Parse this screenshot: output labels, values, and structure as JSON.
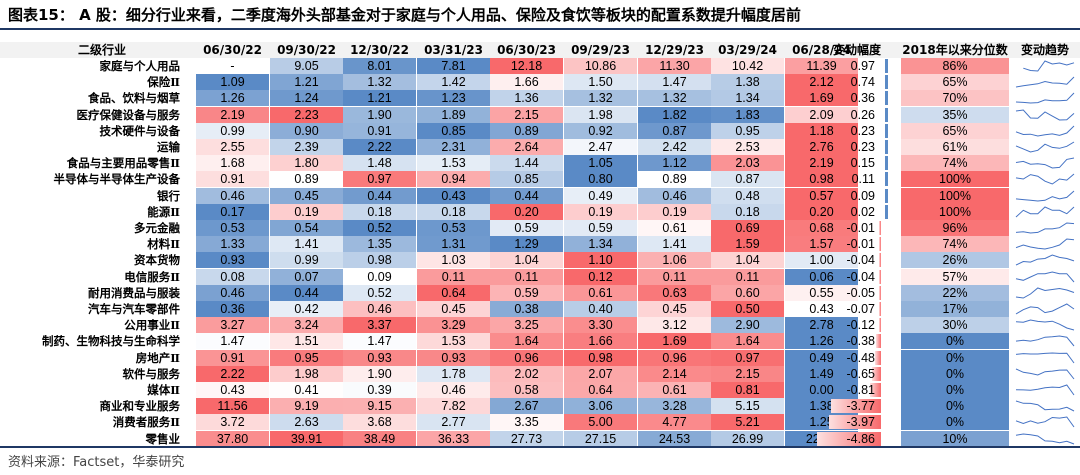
{
  "title": "图表15：  A 股：细分行业来看，二季度海外头部基金对于家庭与个人用品、保险及食饮等板块的配置系数提升幅度居前",
  "source": "资料来源：Factset，华泰研究",
  "colors": {
    "rule": "#1f3864",
    "high": "#f8696b",
    "mid": "#ffffff",
    "low": "#5a8ac6",
    "neg_bar": "#f8696b",
    "pos_bar": "#5a8ac6",
    "spark": "#4472c4"
  },
  "columns": {
    "industry": "二级行业",
    "dates": [
      "06/30/22",
      "09/30/22",
      "12/30/22",
      "03/31/23",
      "06/30/23",
      "09/29/23",
      "12/29/23",
      "03/29/24",
      "06/28/24"
    ],
    "change": "变动幅度",
    "percentile": "2018年以来分位数",
    "trend": "变动趋势"
  },
  "rows": [
    {
      "name": "家庭与个人用品",
      "values": [
        "-",
        "9.05",
        "8.01",
        "7.81",
        "12.18",
        "10.86",
        "11.30",
        "10.42",
        "11.39"
      ],
      "change": "0.97",
      "percentile": "86%"
    },
    {
      "name": "保险Ⅱ",
      "values": [
        "1.09",
        "1.21",
        "1.32",
        "1.42",
        "1.66",
        "1.50",
        "1.47",
        "1.38",
        "2.12"
      ],
      "change": "0.74",
      "percentile": "65%"
    },
    {
      "name": "食品、饮料与烟草",
      "values": [
        "1.26",
        "1.24",
        "1.21",
        "1.23",
        "1.36",
        "1.32",
        "1.32",
        "1.34",
        "1.69"
      ],
      "change": "0.36",
      "percentile": "70%"
    },
    {
      "name": "医疗保健设备与服务",
      "values": [
        "2.19",
        "2.23",
        "1.90",
        "1.89",
        "2.15",
        "1.98",
        "1.82",
        "1.83",
        "2.09"
      ],
      "change": "0.26",
      "percentile": "35%"
    },
    {
      "name": "技术硬件与设备",
      "values": [
        "0.99",
        "0.90",
        "0.91",
        "0.85",
        "0.89",
        "0.92",
        "0.87",
        "0.95",
        "1.18"
      ],
      "change": "0.23",
      "percentile": "65%"
    },
    {
      "name": "运输",
      "values": [
        "2.55",
        "2.39",
        "2.22",
        "2.31",
        "2.64",
        "2.47",
        "2.42",
        "2.53",
        "2.76"
      ],
      "change": "0.23",
      "percentile": "61%"
    },
    {
      "name": "食品与主要用品零售Ⅱ",
      "values": [
        "1.68",
        "1.80",
        "1.48",
        "1.53",
        "1.44",
        "1.05",
        "1.12",
        "2.03",
        "2.19"
      ],
      "change": "0.15",
      "percentile": "74%"
    },
    {
      "name": "半导体与半导体生产设备",
      "values": [
        "0.91",
        "0.89",
        "0.97",
        "0.94",
        "0.85",
        "0.80",
        "0.89",
        "0.87",
        "0.98"
      ],
      "change": "0.11",
      "percentile": "100%"
    },
    {
      "name": "银行",
      "values": [
        "0.46",
        "0.45",
        "0.44",
        "0.43",
        "0.44",
        "0.49",
        "0.46",
        "0.48",
        "0.57"
      ],
      "change": "0.09",
      "percentile": "100%"
    },
    {
      "name": "能源Ⅱ",
      "values": [
        "0.17",
        "0.19",
        "0.18",
        "0.18",
        "0.20",
        "0.19",
        "0.19",
        "0.18",
        "0.20"
      ],
      "change": "0.02",
      "percentile": "100%"
    },
    {
      "name": "多元金融",
      "values": [
        "0.53",
        "0.54",
        "0.52",
        "0.53",
        "0.59",
        "0.59",
        "0.61",
        "0.69",
        "0.68"
      ],
      "change": "-0.01",
      "percentile": "96%"
    },
    {
      "name": "材料Ⅱ",
      "values": [
        "1.33",
        "1.41",
        "1.35",
        "1.31",
        "1.29",
        "1.34",
        "1.41",
        "1.59",
        "1.57"
      ],
      "change": "-0.01",
      "percentile": "74%"
    },
    {
      "name": "资本货物",
      "values": [
        "0.93",
        "0.99",
        "0.98",
        "1.03",
        "1.04",
        "1.10",
        "1.06",
        "1.04",
        "1.00"
      ],
      "change": "-0.04",
      "percentile": "26%"
    },
    {
      "name": "电信服务Ⅱ",
      "values": [
        "0.08",
        "0.07",
        "0.09",
        "0.11",
        "0.11",
        "0.12",
        "0.11",
        "0.11",
        "0.06"
      ],
      "change": "-0.04",
      "percentile": "57%"
    },
    {
      "name": "耐用消费品与服装",
      "values": [
        "0.46",
        "0.44",
        "0.52",
        "0.64",
        "0.59",
        "0.61",
        "0.63",
        "0.60",
        "0.55"
      ],
      "change": "-0.05",
      "percentile": "22%"
    },
    {
      "name": "汽车与汽车零部件",
      "values": [
        "0.36",
        "0.42",
        "0.46",
        "0.45",
        "0.38",
        "0.40",
        "0.45",
        "0.50",
        "0.43"
      ],
      "change": "-0.07",
      "percentile": "17%"
    },
    {
      "name": "公用事业Ⅱ",
      "values": [
        "3.27",
        "3.24",
        "3.37",
        "3.29",
        "3.25",
        "3.30",
        "3.12",
        "2.90",
        "2.78"
      ],
      "change": "-0.12",
      "percentile": "30%"
    },
    {
      "name": "制药、生物科技与生命科学",
      "values": [
        "1.47",
        "1.51",
        "1.47",
        "1.53",
        "1.64",
        "1.66",
        "1.69",
        "1.64",
        "1.26"
      ],
      "change": "-0.38",
      "percentile": "0%"
    },
    {
      "name": "房地产Ⅱ",
      "values": [
        "0.91",
        "0.95",
        "0.93",
        "0.93",
        "0.96",
        "0.98",
        "0.96",
        "0.97",
        "0.49"
      ],
      "change": "-0.48",
      "percentile": "0%"
    },
    {
      "name": "软件与服务",
      "values": [
        "2.22",
        "1.98",
        "1.90",
        "1.78",
        "2.02",
        "2.07",
        "2.14",
        "2.15",
        "1.49"
      ],
      "change": "-0.65",
      "percentile": "0%"
    },
    {
      "name": "媒体Ⅱ",
      "values": [
        "0.43",
        "0.41",
        "0.39",
        "0.46",
        "0.58",
        "0.64",
        "0.61",
        "0.81",
        "0.00"
      ],
      "change": "-0.81",
      "percentile": "0%"
    },
    {
      "name": "商业和专业服务",
      "values": [
        "11.56",
        "9.19",
        "9.15",
        "7.82",
        "2.67",
        "3.06",
        "3.28",
        "5.15",
        "1.38"
      ],
      "change": "-3.77",
      "percentile": "0%"
    },
    {
      "name": "消费者服务Ⅱ",
      "values": [
        "3.72",
        "2.63",
        "3.68",
        "2.77",
        "3.35",
        "5.00",
        "4.77",
        "5.21",
        "1.25"
      ],
      "change": "-3.97",
      "percentile": "0%"
    },
    {
      "name": "零售业",
      "values": [
        "37.80",
        "39.91",
        "38.49",
        "36.33",
        "27.73",
        "27.15",
        "24.53",
        "26.99",
        "22.13"
      ],
      "change": "-4.86",
      "percentile": "10%"
    }
  ]
}
